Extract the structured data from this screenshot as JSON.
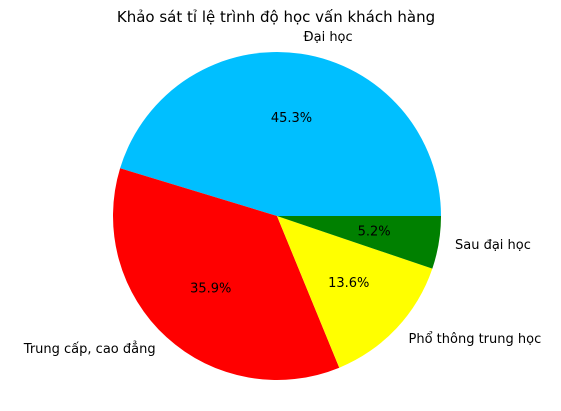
{
  "chart_data": {
    "type": "pie",
    "title": "Khảo sát tỉ lệ trình độ học vấn khách hàng",
    "categories": [
      "Đại học",
      "Trung cấp, cao đẳng",
      "Phổ thông trung học",
      "Sau đại học"
    ],
    "values": [
      45.3,
      35.9,
      13.6,
      5.2
    ],
    "value_labels": [
      "45.3%",
      "35.9%",
      "13.6%",
      "5.2%"
    ],
    "colors": [
      "#00BFFF",
      "#FF0000",
      "#FFFF00",
      "#008000"
    ],
    "start_angle_deg": 0,
    "direction": "counterclockwise",
    "legend": "none"
  }
}
